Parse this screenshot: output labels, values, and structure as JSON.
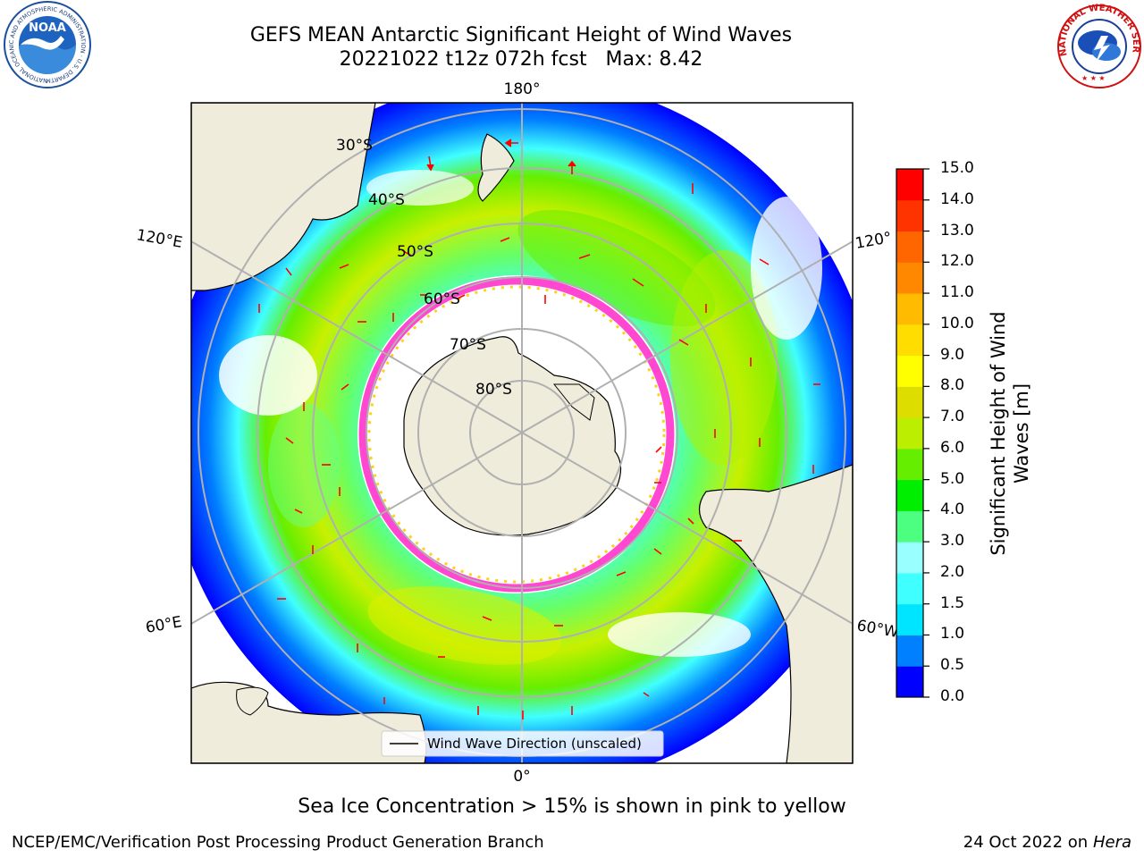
{
  "header": {
    "title_line1": "GEFS MEAN Antarctic Significant Height of Wind Waves",
    "title_line2": "20221022 t12z 072h fcst   Max: 8.42"
  },
  "logos": {
    "noaa_text": "NOAA",
    "noaa_ring_text": "NATIONAL OCEANIC AND ATMOSPHERIC ADMINISTRATION · U.S. DEPARTMENT OF COMMERCE",
    "nws_ring_text": "NATIONAL WEATHER SERVICE"
  },
  "map": {
    "longitude_labels": {
      "top": "180°",
      "bottom": "0°",
      "left_upper": "120°E",
      "left_lower": "60°E",
      "right_upper": "120°",
      "right_lower": "60°W"
    },
    "latitude_labels": [
      "30°S",
      "40°S",
      "50°S",
      "60°S",
      "70°S",
      "80°S"
    ],
    "legend_label": "Wind Wave Direction (unscaled)",
    "colors": {
      "land": "#efecdc",
      "sea_ice_min": "#ff33cc",
      "sea_ice_max": "#ffcc00",
      "arrow": "#ff0000",
      "grid": "#b0b0b0"
    }
  },
  "colorbar": {
    "label_line1": "Significant Height of Wind",
    "label_line2": "Waves [m]",
    "ticks": [
      "0.0",
      "0.5",
      "1.0",
      "1.5",
      "2.0",
      "3.0",
      "4.0",
      "5.0",
      "6.0",
      "7.0",
      "8.0",
      "9.0",
      "10.0",
      "11.0",
      "12.0",
      "13.0",
      "14.0",
      "15.0"
    ],
    "colors": [
      "#0000ff",
      "#0080ff",
      "#00e5ff",
      "#40ffff",
      "#99ffff",
      "#4dff80",
      "#00ee00",
      "#66ee00",
      "#bbee00",
      "#dddd00",
      "#ffff00",
      "#ffdd00",
      "#ffbb00",
      "#ff8800",
      "#ff6600",
      "#ff3300",
      "#ff0000"
    ]
  },
  "note": "Sea Ice Concentration > 15% is shown in pink to yellow",
  "footer": {
    "left": "NCEP/EMC/Verification Post Processing Product Generation Branch",
    "right_date": "24 Oct 2022 on",
    "right_machine": "Hera"
  }
}
